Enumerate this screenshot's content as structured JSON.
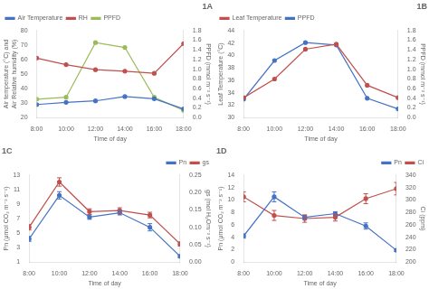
{
  "chart_data": [
    {
      "type": "line",
      "annotation": "1A",
      "x_label": "Time of day",
      "y_label": "Air temperature (°C) and\nAir Relative humidity (%)",
      "y2_label": "PPFD (mmol m⁻² s⁻¹)",
      "categories": [
        "8:00",
        "10:00",
        "12:00",
        "14:00",
        "16:00",
        "18:00"
      ],
      "ylim": [
        20,
        80
      ],
      "yticks": [
        20,
        30,
        40,
        50,
        60,
        70,
        80
      ],
      "y2lim": [
        0,
        1.8
      ],
      "y2ticks": [
        {
          "value": 0,
          "label": "0.0"
        },
        0.2,
        0.4,
        0.6,
        0.8,
        {
          "value": 1.0,
          "label": "1.0"
        },
        1.2,
        1.4,
        1.6,
        1.8
      ],
      "grid": false,
      "legend": "upper left",
      "series": [
        {
          "name": "Air Temperature",
          "color": "#4472C4",
          "marker": "circle",
          "values": [
            29.0,
            30.5,
            31.5,
            34.5,
            33.0,
            26.0
          ]
        },
        {
          "name": "RH",
          "color": "#C0504D",
          "marker": "circle",
          "values": [
            61.0,
            56.5,
            53.0,
            52.0,
            50.5,
            71.0
          ]
        },
        {
          "name": "PPFD",
          "color": "#9BBB59",
          "marker": "circle",
          "axis": "y2",
          "values": [
            0.38,
            0.42,
            1.55,
            1.45,
            0.42,
            0.15
          ]
        }
      ]
    },
    {
      "type": "line",
      "annotation": "1B",
      "x_label": "Time of day",
      "y_label": "Leaf Temperature (°C)",
      "y2_label": "PPFD (mmol m⁻² s⁻¹)",
      "categories": [
        "8:00",
        "10:00",
        "12:00",
        "14:00",
        "16:00",
        "18:00"
      ],
      "ylim": [
        30,
        44
      ],
      "yticks": [
        30,
        32,
        34,
        36,
        38,
        40,
        42,
        44
      ],
      "y2lim": [
        0,
        1.8
      ],
      "y2ticks": [
        {
          "value": 0,
          "label": "0.0"
        },
        0.2,
        0.4,
        0.6,
        0.8,
        {
          "value": 1.0,
          "label": "1.0"
        },
        1.2,
        1.4,
        1.6,
        1.8
      ],
      "grid": false,
      "legend": "upper left",
      "series": [
        {
          "name": "Leaf Temperature",
          "color": "#C0504D",
          "marker": "circle",
          "values": [
            33.2,
            36.2,
            41.0,
            41.8,
            35.2,
            33.2
          ]
        },
        {
          "name": "PPFD",
          "color": "#4472C4",
          "marker": "circle",
          "axis": "y2",
          "values": [
            0.38,
            1.18,
            1.55,
            1.5,
            0.4,
            0.18
          ]
        }
      ]
    },
    {
      "type": "line",
      "annotation": "1C",
      "x_label": "Time of day",
      "y_label": "Pn (μmol CO₂ m⁻² s⁻¹)",
      "y2_label": "gs (mol H₂Om⁻² s⁻¹)",
      "categories": [
        "8:00",
        "10:00",
        "12:00",
        "14:00",
        "16:00",
        "18:00"
      ],
      "ylim": [
        1,
        13
      ],
      "yticks": [
        1,
        3,
        5,
        7,
        9,
        11,
        13
      ],
      "y2lim": [
        0,
        0.25
      ],
      "y2ticks": [
        {
          "value": 0,
          "label": "0.00"
        },
        0.05,
        {
          "value": 0.1,
          "label": "0.10"
        },
        0.15,
        {
          "value": 0.2,
          "label": "0.20"
        },
        0.25
      ],
      "grid": false,
      "legend": "upper right",
      "series": [
        {
          "name": "Pn",
          "color": "#4472C4",
          "marker": "circle",
          "values": [
            4.2,
            10.2,
            7.2,
            7.8,
            5.8,
            1.8
          ],
          "errors": [
            0.35,
            0.5,
            0.3,
            0.3,
            0.5,
            0.2
          ]
        },
        {
          "name": "gs",
          "color": "#C0504D",
          "marker": "circle",
          "axis": "y2",
          "values": [
            0.1,
            0.23,
            0.145,
            0.148,
            0.135,
            0.052
          ],
          "errors": [
            0.008,
            0.012,
            0.008,
            0.008,
            0.008,
            0.006
          ]
        }
      ]
    },
    {
      "type": "line",
      "annotation": "1D",
      "x_label": "Time of day",
      "y_label": "Pn (μmol CO₂ m⁻² s⁻¹)",
      "y2_label": "Ci (ppm)",
      "categories": [
        "8:00",
        "10:00",
        "12:00",
        "14:00",
        "16:00",
        "18:00"
      ],
      "ylim": [
        0,
        14
      ],
      "yticks": [
        0,
        2,
        4,
        6,
        8,
        10,
        12,
        14
      ],
      "y2lim": [
        200,
        340
      ],
      "y2ticks": [
        200,
        220,
        240,
        260,
        280,
        300,
        320,
        340
      ],
      "grid": false,
      "legend": "upper right",
      "series": [
        {
          "name": "Pn",
          "color": "#4472C4",
          "marker": "circle",
          "values": [
            4.2,
            10.5,
            7.2,
            7.8,
            5.8,
            1.9
          ],
          "errors": [
            0.35,
            0.8,
            0.3,
            0.3,
            0.5,
            0.2
          ]
        },
        {
          "name": "Ci",
          "color": "#C0504D",
          "marker": "circle",
          "axis": "y2",
          "values": [
            305,
            275,
            270,
            272,
            302,
            318
          ],
          "errors": [
            8,
            8,
            6,
            6,
            8,
            10
          ]
        }
      ]
    }
  ]
}
